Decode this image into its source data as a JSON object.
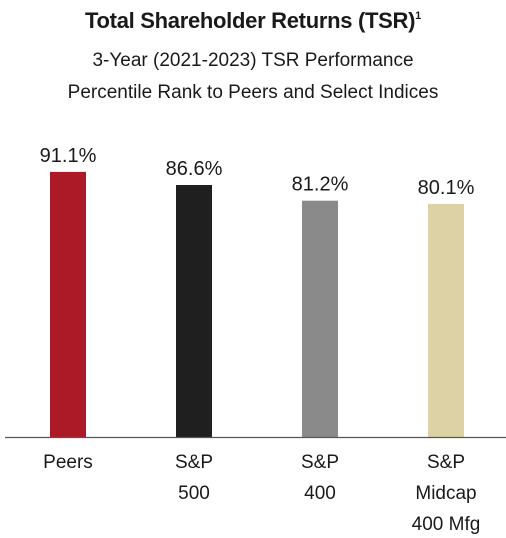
{
  "header": {
    "title": "Total Shareholder Returns (TSR)",
    "footnote_mark": "1",
    "subtitle_line1": "3-Year (2021-2023) TSR Performance",
    "subtitle_line2": "Percentile Rank to Peers and Select Indices"
  },
  "chart_data": {
    "type": "bar",
    "categories": [
      [
        "Peers"
      ],
      [
        "S&P",
        "500"
      ],
      [
        "S&P",
        "400"
      ],
      [
        "S&P",
        "Midcap",
        "400 Mfg"
      ]
    ],
    "values": [
      91.1,
      86.6,
      81.2,
      80.1
    ],
    "value_labels": [
      "91.1%",
      "86.6%",
      "81.2%",
      "80.1%"
    ],
    "colors": [
      "#ad1a27",
      "#1f1f1f",
      "#8a8a8a",
      "#ddd1a6"
    ],
    "ylim": [
      0,
      100
    ],
    "grid": false,
    "legend": "none"
  }
}
